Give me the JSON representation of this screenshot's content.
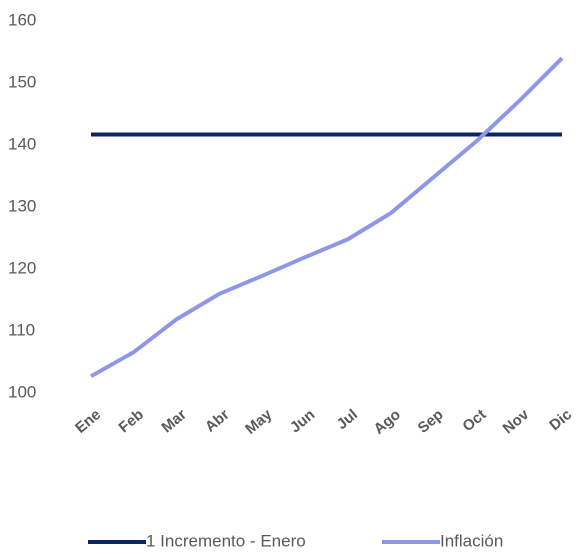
{
  "chart_data": {
    "type": "line",
    "categories": [
      "Ene",
      "Feb",
      "Mar",
      "Abr",
      "May",
      "Jun",
      "Jul",
      "Ago",
      "Sep",
      "Oct",
      "Nov",
      "Dic"
    ],
    "series": [
      {
        "name": "1 Incremento - Enero",
        "color": "#0c2461",
        "values": [
          141.7,
          141.7,
          141.7,
          141.7,
          141.7,
          141.7,
          141.7,
          141.7,
          141.7,
          141.7,
          141.7,
          141.7
        ]
      },
      {
        "name": "Inflación",
        "color": "#8e96e8",
        "values": [
          102.7,
          106.6,
          111.9,
          116,
          118.9,
          121.9,
          124.8,
          129,
          134.8,
          140.6,
          147.1,
          154
        ]
      }
    ],
    "ylim": [
      100,
      160
    ],
    "yticks": [
      100,
      110,
      120,
      130,
      140,
      150,
      160
    ],
    "grid": false,
    "legend": "bottom"
  }
}
